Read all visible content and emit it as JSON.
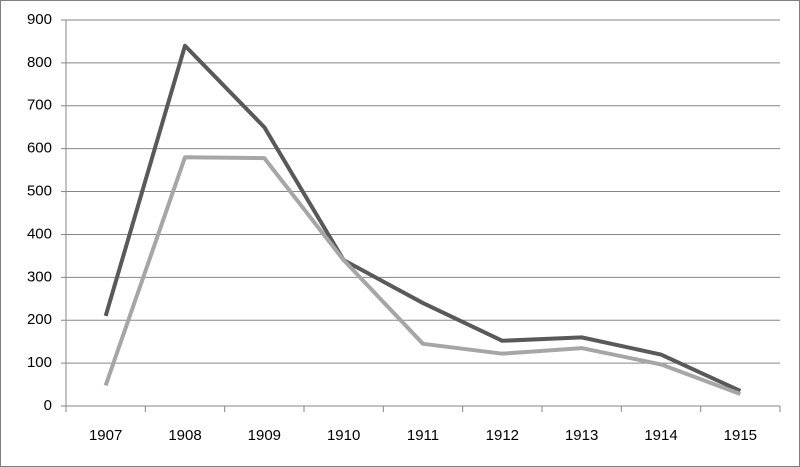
{
  "chart_data": {
    "type": "line",
    "categories": [
      "1907",
      "1908",
      "1909",
      "1910",
      "1911",
      "1912",
      "1913",
      "1914",
      "1915"
    ],
    "series": [
      {
        "color": "#595959",
        "values": [
          210,
          840,
          650,
          340,
          240,
          152,
          160,
          120,
          35
        ]
      },
      {
        "color": "#a6a6a6",
        "values": [
          48,
          580,
          578,
          340,
          145,
          122,
          135,
          97,
          28
        ]
      }
    ],
    "ylim": [
      0,
      900
    ],
    "yticks": [
      0,
      100,
      200,
      300,
      400,
      500,
      600,
      700,
      800,
      900
    ],
    "grid": true
  }
}
